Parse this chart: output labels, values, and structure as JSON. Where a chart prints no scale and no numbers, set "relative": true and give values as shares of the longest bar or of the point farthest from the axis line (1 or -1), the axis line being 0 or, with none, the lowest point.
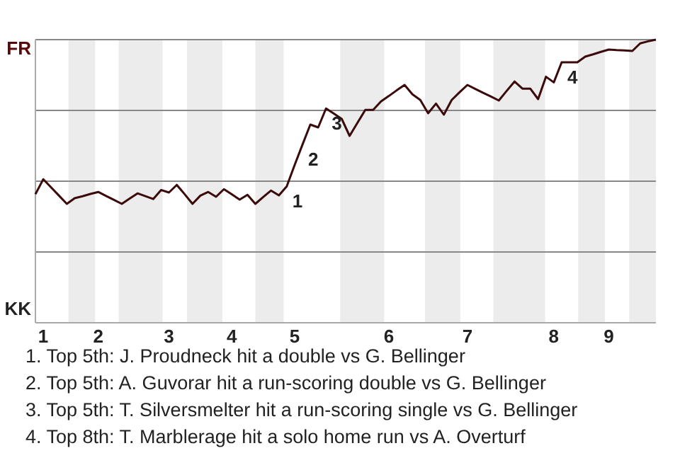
{
  "chart_data": {
    "type": "line",
    "marker": "none",
    "legend": false,
    "relative": true,
    "categories": [
      null,
      "1",
      null,
      null,
      null,
      null,
      null,
      null,
      "2",
      null,
      null,
      null,
      null,
      null,
      null,
      null,
      null,
      "3",
      null,
      null,
      null,
      null,
      null,
      null,
      null,
      "4",
      null,
      null,
      null,
      null,
      null,
      null,
      null,
      "5",
      null,
      null,
      null,
      null,
      null,
      null,
      null,
      null,
      null,
      null,
      null,
      "6",
      null,
      null,
      null,
      null,
      null,
      null,
      null,
      null,
      null,
      "7",
      null,
      null,
      null,
      null,
      null,
      null,
      null,
      null,
      null,
      null,
      "8",
      null,
      null,
      null,
      null,
      null,
      null,
      "9",
      null,
      null,
      null,
      null,
      null,
      null
    ],
    "ref_lines": [
      {
        "axis": "y",
        "value": 0.25,
        "color": "#888888"
      },
      {
        "axis": "y",
        "value": 0.5,
        "color": "#888888"
      },
      {
        "axis": "y",
        "value": 0.75,
        "color": "#888888"
      },
      {
        "axis": "y",
        "value": 1,
        "color": "#888888"
      }
    ],
    "series": [
      {
        "color": "#3b0a0a",
        "values": [
          0.454,
          0.507,
          0.478,
          0.449,
          0.42,
          0.44,
          0.447,
          0.455,
          0.462,
          0.448,
          0.434,
          0.42,
          0.439,
          0.457,
          0.447,
          0.437,
          0.469,
          0.46,
          0.487,
          0.454,
          0.42,
          0.449,
          0.462,
          0.445,
          0.472,
          0.454,
          0.435,
          0.452,
          0.42,
          0.444,
          0.467,
          0.45,
          0.482,
          0.557,
          0.629,
          0.7,
          0.69,
          0.757,
          0.739,
          0.72,
          0.66,
          0.706,
          0.752,
          0.752,
          0.782,
          0.801,
          0.821,
          0.84,
          0.807,
          0.787,
          0.74,
          0.774,
          0.735,
          0.787,
          0.814,
          0.84,
          0.826,
          0.812,
          0.799,
          0.785,
          0.819,
          0.852,
          0.827,
          0.827,
          0.79,
          0.869,
          0.849,
          0.92,
          0.92,
          0.92,
          0.94,
          0.948,
          0.957,
          0.965,
          0.963,
          0.962,
          0.96,
          0.987,
          0.994,
          1
        ]
      }
    ],
    "annotations": [
      "FR",
      "KK",
      "1",
      "2",
      "3",
      "4",
      "1. Top 5th: J. Proudneck hit a double vs G. Bellinger",
      "2. Top 5th: A. Guvorar hit a run-scoring double vs G. Bellinger",
      "3. Top 5th: T. Silversmelter hit a run-scoring single vs G. Bellinger",
      "4. Top 8th: T. Marblerage hit a solo home run vs A. Overturf"
    ]
  }
}
